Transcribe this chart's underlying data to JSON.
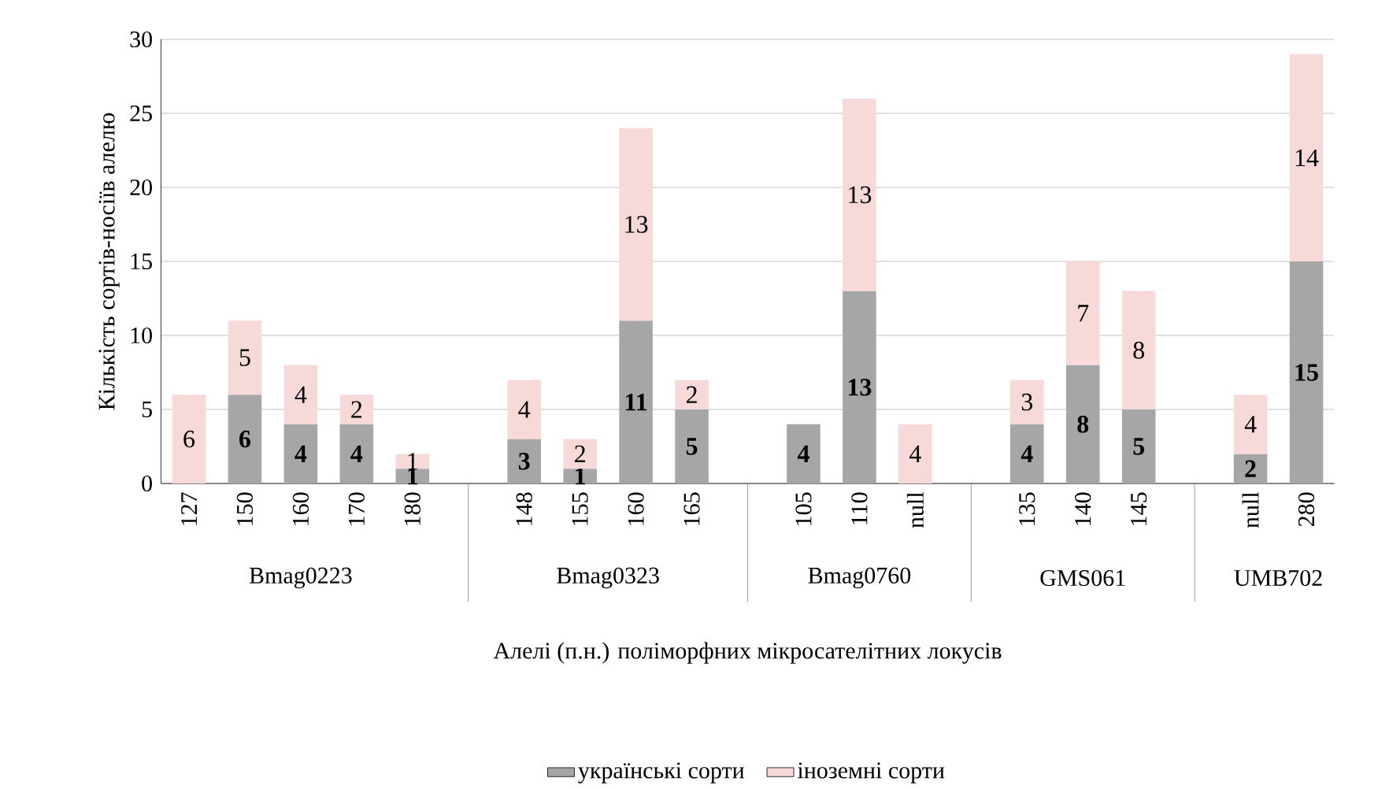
{
  "chart_data": {
    "type": "bar",
    "stacked": true,
    "xlabel": "Алелі (п.н.) поліморфних мікросателітних локусів",
    "ylabel": "Кількість сортів-носіїв алелю",
    "categories": [
      "127",
      "150",
      "160",
      "170",
      "180",
      null,
      "148",
      "155",
      "160",
      "165",
      null,
      "105",
      "110",
      "null",
      null,
      "135",
      "140",
      "145",
      null,
      "null",
      "280"
    ],
    "series": [
      {
        "name": "українські сорти",
        "color": "#a6a6a6",
        "values": [
          null,
          6,
          4,
          4,
          1,
          null,
          3,
          1,
          11,
          5,
          null,
          4,
          13,
          null,
          null,
          4,
          8,
          5,
          null,
          2,
          15
        ]
      },
      {
        "name": "іноземні сорти",
        "color": "#f7d9da",
        "values": [
          6,
          5,
          4,
          2,
          1,
          null,
          4,
          2,
          13,
          2,
          null,
          null,
          13,
          4,
          null,
          3,
          7,
          8,
          null,
          4,
          14
        ]
      }
    ],
    "annotations": [
      "Bmag0223",
      "Bmag0323",
      "Bmag0760",
      "GMS061",
      "UMB702"
    ],
    "ylim": [
      0,
      30
    ],
    "yticks": [
      0,
      5,
      10,
      15,
      20,
      25,
      30
    ],
    "grid": "y",
    "data_labels": true,
    "legend": "bottom"
  }
}
